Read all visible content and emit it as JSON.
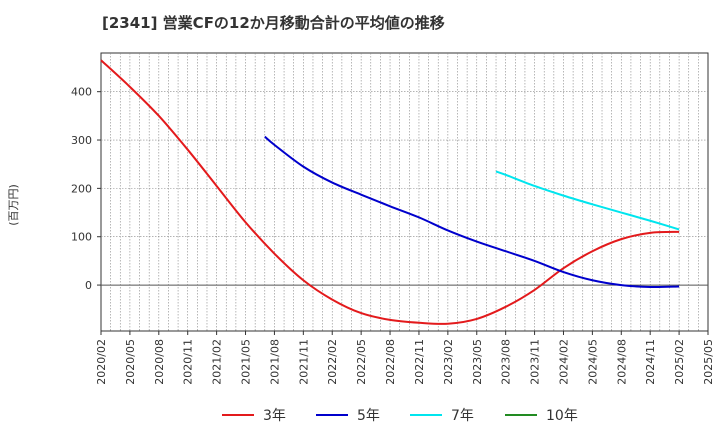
{
  "title": "[2341]  営業CFの12か月移動合計の平均値の推移",
  "chart_data": {
    "type": "line",
    "title": "[2341]  営業CFの12か月移動合計の平均値の推移",
    "ylabel": "(百万円)",
    "xlabel": "",
    "ylim": [
      -95,
      480
    ],
    "yticks": [
      0,
      100,
      200,
      300,
      400
    ],
    "xticks": [
      "2020/02",
      "2020/05",
      "2020/08",
      "2020/11",
      "2021/02",
      "2021/05",
      "2021/08",
      "2021/11",
      "2022/02",
      "2022/05",
      "2022/08",
      "2022/11",
      "2023/02",
      "2023/05",
      "2023/08",
      "2023/11",
      "2024/02",
      "2024/05",
      "2024/08",
      "2024/11",
      "2025/02",
      "2025/05"
    ],
    "grid": true,
    "legend_position": "bottom",
    "series": [
      {
        "name": "3年",
        "color": "#e31a1c",
        "x": [
          "2020/02",
          "2020/05",
          "2020/08",
          "2020/11",
          "2021/02",
          "2021/05",
          "2021/08",
          "2021/11",
          "2022/02",
          "2022/05",
          "2022/08",
          "2022/11",
          "2023/02",
          "2023/05",
          "2023/08",
          "2023/11",
          "2024/02",
          "2024/05",
          "2024/08",
          "2024/11",
          "2025/02"
        ],
        "values": [
          465,
          410,
          350,
          280,
          205,
          130,
          65,
          10,
          -30,
          -58,
          -72,
          -78,
          -80,
          -70,
          -45,
          -10,
          35,
          70,
          95,
          108,
          110
        ]
      },
      {
        "name": "5年",
        "color": "#0000cc",
        "x": [
          "2021/07",
          "2021/08",
          "2021/11",
          "2022/02",
          "2022/05",
          "2022/08",
          "2022/11",
          "2023/02",
          "2023/05",
          "2023/08",
          "2023/11",
          "2024/02",
          "2024/05",
          "2024/08",
          "2024/11",
          "2025/02"
        ],
        "values": [
          307,
          290,
          245,
          212,
          187,
          163,
          140,
          113,
          90,
          70,
          50,
          27,
          10,
          0,
          -4,
          -3
        ]
      },
      {
        "name": "7年",
        "color": "#00e5ee",
        "x": [
          "2023/07",
          "2023/08",
          "2023/11",
          "2024/02",
          "2024/05",
          "2024/08",
          "2024/11",
          "2025/02"
        ],
        "values": [
          235,
          228,
          205,
          185,
          167,
          150,
          133,
          115
        ]
      },
      {
        "name": "10年",
        "color": "#228b22",
        "x": [],
        "values": []
      }
    ]
  }
}
